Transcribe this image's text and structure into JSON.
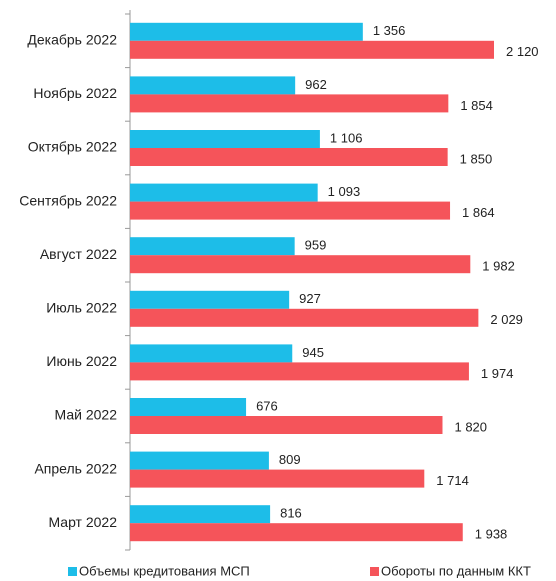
{
  "chart_data": {
    "type": "bar",
    "orientation": "horizontal",
    "legend": "bottom",
    "categories": [
      "Декабрь 2022",
      "Ноябрь 2022",
      "Октябрь 2022",
      "Сентябрь 2022",
      "Август 2022",
      "Июль 2022",
      "Июнь 2022",
      "Май 2022",
      "Апрель 2022",
      "Март 2022"
    ],
    "series": [
      {
        "name": "Объемы кредитования МСП",
        "color": "#1dbde8",
        "values": [
          1356,
          962,
          1106,
          1093,
          959,
          927,
          945,
          676,
          809,
          816
        ],
        "value_labels": [
          "1 356",
          "962",
          "1 106",
          "1 093",
          "959",
          "927",
          "945",
          "676",
          "809",
          "816"
        ]
      },
      {
        "name": "Обороты по данным ККТ",
        "color": "#f5545a",
        "values": [
          2120,
          1854,
          1850,
          1864,
          1982,
          2029,
          1974,
          1820,
          1714,
          1938
        ],
        "value_labels": [
          "2 120",
          "1 854",
          "1 850",
          "1 864",
          "1 982",
          "2 029",
          "1 974",
          "1 820",
          "1 714",
          "1 938"
        ]
      }
    ]
  }
}
